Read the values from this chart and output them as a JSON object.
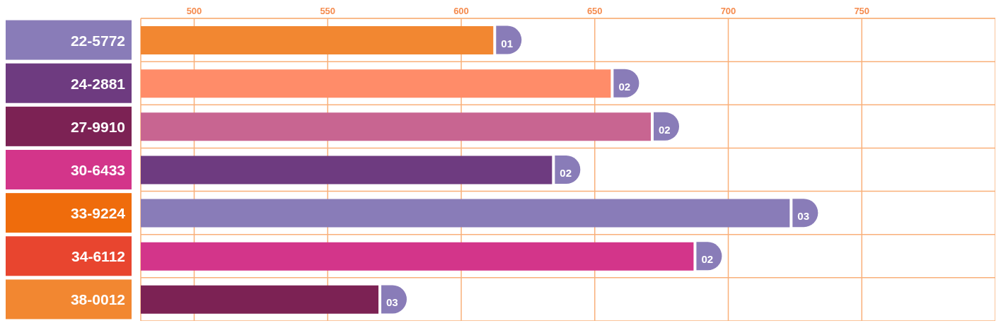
{
  "chart_data": {
    "type": "bar",
    "orientation": "horizontal",
    "categories": [
      "22-5772",
      "24-2881",
      "27-9910",
      "30-6433",
      "33-9224",
      "34-6112",
      "38-0012"
    ],
    "values": [
      612,
      656,
      671,
      634,
      723,
      687,
      569
    ],
    "colors": [
      "#f28731",
      "#ff8c69",
      "#c86591",
      "#6e3b80",
      "#897cb8",
      "#d3358a",
      "#7c2254"
    ],
    "annotations": [
      {
        "text": "01",
        "x": 612,
        "y": "22-5772"
      },
      {
        "text": "02",
        "x": 656,
        "y": "24-2881"
      },
      {
        "text": "02",
        "x": 671,
        "y": "27-9910"
      },
      {
        "text": "02",
        "x": 634,
        "y": "30-6433"
      },
      {
        "text": "03",
        "x": 723,
        "y": "33-9224"
      },
      {
        "text": "02",
        "x": 687,
        "y": "34-6112"
      },
      {
        "text": "03",
        "x": 569,
        "y": "38-0012"
      }
    ],
    "xlim": [
      480,
      800
    ],
    "xticks": [
      500,
      550,
      600,
      650,
      700,
      750
    ],
    "grid": true
  }
}
